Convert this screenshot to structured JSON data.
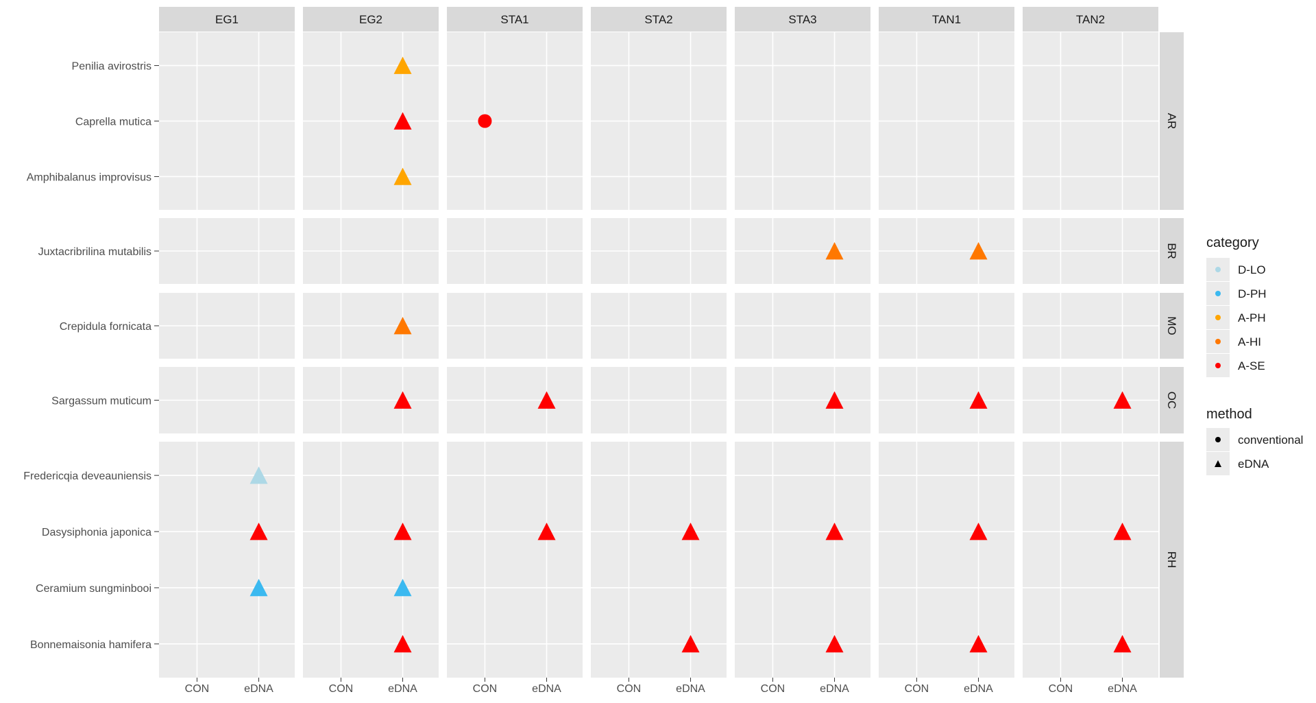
{
  "chart_data": {
    "type": "scatter",
    "facet_columns": [
      "EG1",
      "EG2",
      "STA1",
      "STA2",
      "STA3",
      "TAN1",
      "TAN2"
    ],
    "facet_rows": [
      {
        "label": "AR",
        "species": [
          "Penilia avirostris",
          "Caprella mutica",
          "Amphibalanus improvisus"
        ]
      },
      {
        "label": "BR",
        "species": [
          "Juxtacribrilina mutabilis"
        ]
      },
      {
        "label": "MO",
        "species": [
          "Crepidula fornicata"
        ]
      },
      {
        "label": "OC",
        "species": [
          "Sargassum muticum"
        ]
      },
      {
        "label": "RH",
        "species": [
          "Fredericqia deveauniensis",
          "Dasysiphonia japonica",
          "Ceramium sungminbooi",
          "Bonnemaisonia hamifera"
        ]
      }
    ],
    "x_categories": [
      "CON",
      "eDNA"
    ],
    "points": [
      {
        "site": "EG2",
        "species": "Penilia avirostris",
        "method": "eDNA",
        "category": "A-PH"
      },
      {
        "site": "EG2",
        "species": "Caprella mutica",
        "method": "eDNA",
        "category": "A-SE"
      },
      {
        "site": "EG2",
        "species": "Amphibalanus improvisus",
        "method": "eDNA",
        "category": "A-PH"
      },
      {
        "site": "STA1",
        "species": "Caprella mutica",
        "method": "CON",
        "category": "A-SE"
      },
      {
        "site": "STA3",
        "species": "Juxtacribrilina mutabilis",
        "method": "eDNA",
        "category": "A-HI"
      },
      {
        "site": "TAN1",
        "species": "Juxtacribrilina mutabilis",
        "method": "eDNA",
        "category": "A-HI"
      },
      {
        "site": "EG2",
        "species": "Crepidula fornicata",
        "method": "eDNA",
        "category": "A-HI"
      },
      {
        "site": "EG2",
        "species": "Sargassum muticum",
        "method": "eDNA",
        "category": "A-SE"
      },
      {
        "site": "STA1",
        "species": "Sargassum muticum",
        "method": "eDNA",
        "category": "A-SE"
      },
      {
        "site": "STA3",
        "species": "Sargassum muticum",
        "method": "eDNA",
        "category": "A-SE"
      },
      {
        "site": "TAN1",
        "species": "Sargassum muticum",
        "method": "eDNA",
        "category": "A-SE"
      },
      {
        "site": "TAN2",
        "species": "Sargassum muticum",
        "method": "eDNA",
        "category": "A-SE"
      },
      {
        "site": "EG1",
        "species": "Fredericqia deveauniensis",
        "method": "eDNA",
        "category": "D-LO"
      },
      {
        "site": "EG1",
        "species": "Dasysiphonia japonica",
        "method": "eDNA",
        "category": "A-SE"
      },
      {
        "site": "EG2",
        "species": "Dasysiphonia japonica",
        "method": "eDNA",
        "category": "A-SE"
      },
      {
        "site": "STA1",
        "species": "Dasysiphonia japonica",
        "method": "eDNA",
        "category": "A-SE"
      },
      {
        "site": "STA2",
        "species": "Dasysiphonia japonica",
        "method": "eDNA",
        "category": "A-SE"
      },
      {
        "site": "STA3",
        "species": "Dasysiphonia japonica",
        "method": "eDNA",
        "category": "A-SE"
      },
      {
        "site": "TAN1",
        "species": "Dasysiphonia japonica",
        "method": "eDNA",
        "category": "A-SE"
      },
      {
        "site": "TAN2",
        "species": "Dasysiphonia japonica",
        "method": "eDNA",
        "category": "A-SE"
      },
      {
        "site": "EG1",
        "species": "Ceramium sungminbooi",
        "method": "eDNA",
        "category": "D-PH"
      },
      {
        "site": "EG2",
        "species": "Ceramium sungminbooi",
        "method": "eDNA",
        "category": "D-PH"
      },
      {
        "site": "EG2",
        "species": "Bonnemaisonia hamifera",
        "method": "eDNA",
        "category": "A-SE"
      },
      {
        "site": "STA2",
        "species": "Bonnemaisonia hamifera",
        "method": "eDNA",
        "category": "A-SE"
      },
      {
        "site": "STA3",
        "species": "Bonnemaisonia hamifera",
        "method": "eDNA",
        "category": "A-SE"
      },
      {
        "site": "TAN1",
        "species": "Bonnemaisonia hamifera",
        "method": "eDNA",
        "category": "A-SE"
      },
      {
        "site": "TAN2",
        "species": "Bonnemaisonia hamifera",
        "method": "eDNA",
        "category": "A-SE"
      }
    ],
    "legend_category": {
      "title": "category",
      "items": [
        {
          "label": "D-LO",
          "color": "#ADD8E6"
        },
        {
          "label": "D-PH",
          "color": "#3BB9F0"
        },
        {
          "label": "A-PH",
          "color": "#FFA500"
        },
        {
          "label": "A-HI",
          "color": "#FF7800"
        },
        {
          "label": "A-SE",
          "color": "#FF0000"
        }
      ]
    },
    "legend_method": {
      "title": "method",
      "items": [
        {
          "label": "conventional",
          "shape": "circle"
        },
        {
          "label": "eDNA",
          "shape": "triangle"
        }
      ]
    },
    "legend_position": "right",
    "colors": {
      "panel_bg": "#EBEBEB",
      "strip_bg": "#D9D9D9",
      "grid": "#FFFFFF",
      "text": "#1A1A1A",
      "axis_text": "#4D4D4D"
    }
  }
}
